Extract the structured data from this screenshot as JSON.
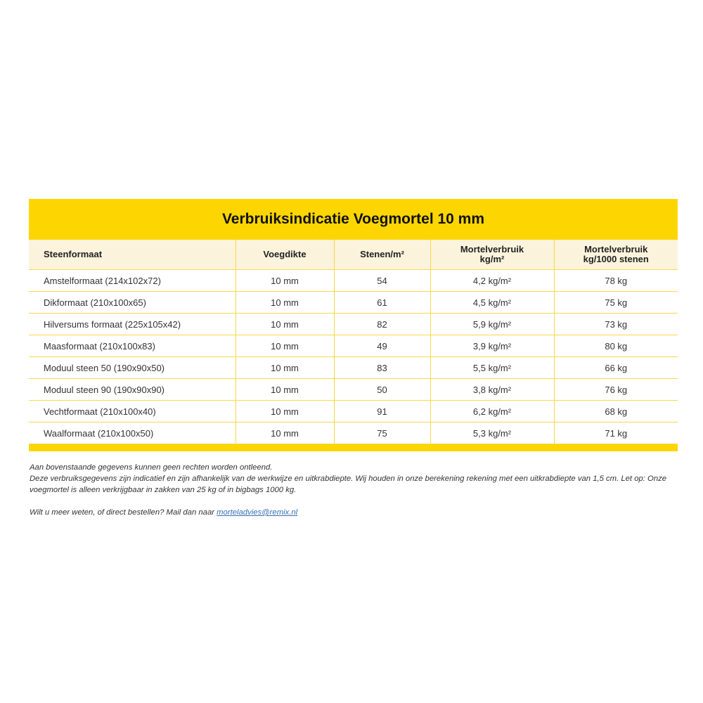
{
  "title": "Verbruiksindicatie Voegmortel 10 mm",
  "colors": {
    "accent": "#fdd500",
    "header_bg": "#fbf3dc",
    "link": "#3a6fb5"
  },
  "table": {
    "headers": [
      {
        "line1": "Steenformaat",
        "line2": ""
      },
      {
        "line1": "Voegdikte",
        "line2": ""
      },
      {
        "line1": "Stenen/m²",
        "line2": ""
      },
      {
        "line1": "Mortelverbruik",
        "line2": "kg/m²"
      },
      {
        "line1": "Mortelverbruik",
        "line2": "kg/1000 stenen"
      }
    ],
    "rows": [
      [
        "Amstelformaat (214x102x72)",
        "10 mm",
        "54",
        "4,2 kg/m²",
        "78 kg"
      ],
      [
        "Dikformaat (210x100x65)",
        "10 mm",
        "61",
        "4,5 kg/m²",
        "75 kg"
      ],
      [
        "Hilversums formaat (225x105x42)",
        "10 mm",
        "82",
        "5,9 kg/m²",
        "73 kg"
      ],
      [
        "Maasformaat (210x100x83)",
        "10 mm",
        "49",
        "3,9 kg/m²",
        "80 kg"
      ],
      [
        "Moduul steen 50 (190x90x50)",
        "10 mm",
        "83",
        "5,5 kg/m²",
        "66 kg"
      ],
      [
        "Moduul steen 90 (190x90x90)",
        "10 mm",
        "50",
        "3,8 kg/m²",
        "76 kg"
      ],
      [
        "Vechtformaat (210x100x40)",
        "10 mm",
        "91",
        "6,2 kg/m²",
        "68 kg"
      ],
      [
        "Waalformaat (210x100x50)",
        "10 mm",
        "75",
        "5,3 kg/m²",
        "71 kg"
      ]
    ]
  },
  "notes": {
    "line1": "Aan bovenstaande gegevens kunnen geen rechten worden ontleend.",
    "line2": "Deze verbruiksgegevens zijn indicatief en zijn afhankelijk van de werkwijze en uitkrabdiepte. Wij houden in onze berekening rekening met een uitkrabdiepte van 1,5 cm. Let op: Onze voegmortel is alleen verkrijgbaar in zakken van 25 kg of in bigbags 1000 kg.",
    "contact_prefix": "Wilt u meer weten, of direct bestellen? Mail dan naar ",
    "email": "morteladvies@remix.nl"
  }
}
